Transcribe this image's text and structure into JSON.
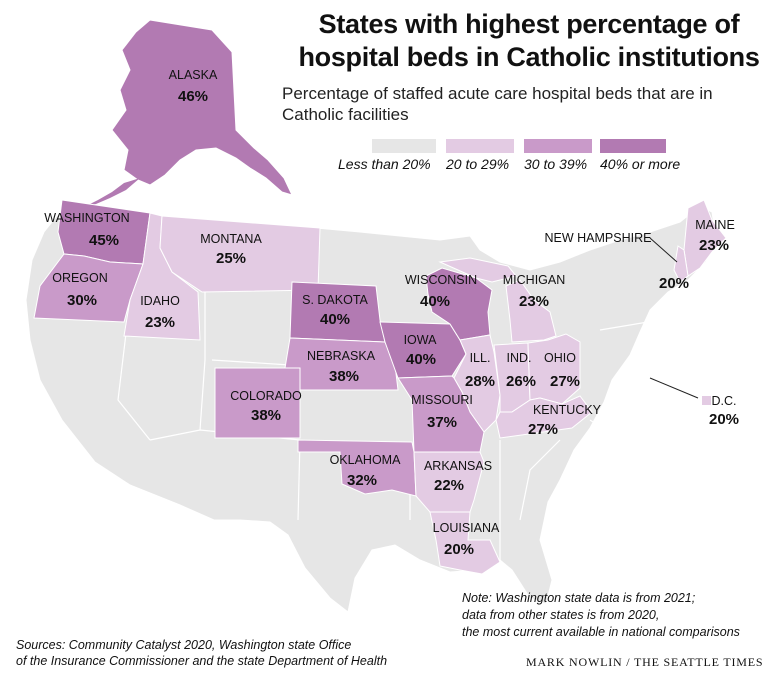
{
  "title_line1": "States with highest percentage of",
  "title_line2": "hospital beds in Catholic institutions",
  "subtitle": "Percentage of staffed acute care hospital beds that are in Catholic facilities",
  "legend": [
    {
      "label": "Less than 20%",
      "color": "#e6e6e6"
    },
    {
      "label": "20 to 29%",
      "color": "#e3cbe3"
    },
    {
      "label": "30 to 39%",
      "color": "#c99ac9"
    },
    {
      "label": "40% or more",
      "color": "#b27ab2"
    }
  ],
  "states": [
    {
      "name": "ALASKA",
      "value": "46%",
      "pct": 46
    },
    {
      "name": "WASHINGTON",
      "value": "45%",
      "pct": 45
    },
    {
      "name": "OREGON",
      "value": "30%",
      "pct": 30
    },
    {
      "name": "IDAHO",
      "value": "23%",
      "pct": 23
    },
    {
      "name": "MONTANA",
      "value": "25%",
      "pct": 25
    },
    {
      "name": "S. DAKOTA",
      "value": "40%",
      "pct": 40
    },
    {
      "name": "NEBRASKA",
      "value": "38%",
      "pct": 38
    },
    {
      "name": "COLORADO",
      "value": "38%",
      "pct": 38
    },
    {
      "name": "IOWA",
      "value": "40%",
      "pct": 40
    },
    {
      "name": "WISCONSIN",
      "value": "40%",
      "pct": 40
    },
    {
      "name": "MICHIGAN",
      "value": "23%",
      "pct": 23
    },
    {
      "name": "ILL.",
      "value": "28%",
      "pct": 28
    },
    {
      "name": "IND.",
      "value": "26%",
      "pct": 26
    },
    {
      "name": "OHIO",
      "value": "27%",
      "pct": 27
    },
    {
      "name": "MISSOURI",
      "value": "37%",
      "pct": 37
    },
    {
      "name": "KENTUCKY",
      "value": "27%",
      "pct": 27
    },
    {
      "name": "OKLAHOMA",
      "value": "32%",
      "pct": 32
    },
    {
      "name": "ARKANSAS",
      "value": "22%",
      "pct": 22
    },
    {
      "name": "LOUISIANA",
      "value": "20%",
      "pct": 20
    },
    {
      "name": "MAINE",
      "value": "23%",
      "pct": 23
    },
    {
      "name": "NEW HAMPSHIRE",
      "value": "20%",
      "pct": 20
    },
    {
      "name": "D.C.",
      "value": "20%",
      "pct": 20
    }
  ],
  "note": [
    "Note: Washington state data is from 2021;",
    "data from other states is from 2020,",
    "the most current available in national comparisons"
  ],
  "sources": [
    "Sources: Community Catalyst 2020, Washington state Office",
    "of the Insurance Commissioner and the state Department of Health"
  ],
  "credit": "MARK NOWLIN / THE SEATTLE TIMES"
}
